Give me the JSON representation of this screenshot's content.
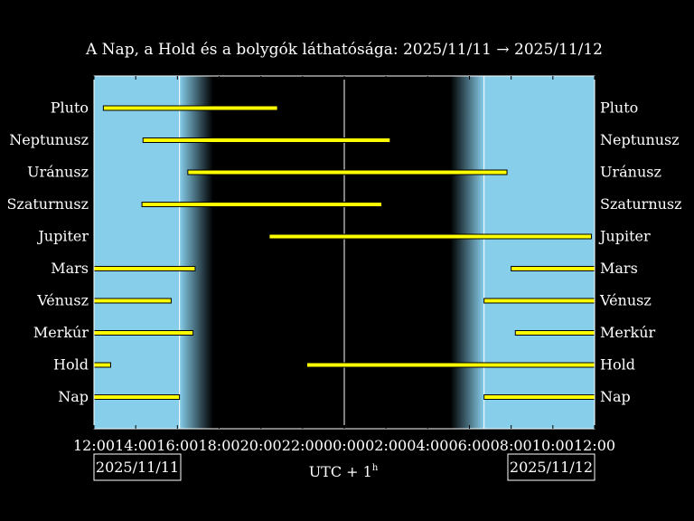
{
  "chart_data": {
    "type": "bar",
    "title": "A Nap, a Hold és a bolygók láthatósága: 2025/11/11 → 2025/11/12",
    "xlabel_main": "UTC + 1",
    "xlabel_sup": "h",
    "date_left": "2025/11/11",
    "date_right": "2025/11/12",
    "x_range_hours": [
      12,
      36
    ],
    "x_tick_labels": [
      "12:00",
      "14:00",
      "16:00",
      "18:00",
      "20:00",
      "22:00",
      "00:00",
      "02:00",
      "04:00",
      "06:00",
      "08:00",
      "10:00",
      "12:00"
    ],
    "midnight_hour": 24,
    "sunset_hour": 16.1,
    "sunrise_hour": 30.7,
    "twilight_hours": 1.6,
    "colors": {
      "day": "#87ceeb",
      "night": "#000000",
      "bar_fill": "#ffff00",
      "bar_edge": "#000000",
      "frame": "#ffffff"
    },
    "objects": [
      {
        "name": "Pluto",
        "intervals": [
          [
            12.45,
            20.8
          ]
        ]
      },
      {
        "name": "Neptunusz",
        "intervals": [
          [
            14.35,
            26.2
          ]
        ]
      },
      {
        "name": "Uránusz",
        "intervals": [
          [
            16.5,
            31.8
          ]
        ]
      },
      {
        "name": "Szaturnusz",
        "intervals": [
          [
            14.3,
            25.8
          ]
        ]
      },
      {
        "name": "Jupiter",
        "intervals": [
          [
            20.4,
            35.85
          ]
        ]
      },
      {
        "name": "Mars",
        "intervals": [
          [
            12.0,
            16.85
          ],
          [
            32.0,
            36.0
          ]
        ]
      },
      {
        "name": "Vénusz",
        "intervals": [
          [
            12.0,
            15.7
          ],
          [
            30.7,
            36.0
          ]
        ]
      },
      {
        "name": "Merkúr",
        "intervals": [
          [
            12.0,
            16.75
          ],
          [
            32.2,
            36.0
          ]
        ]
      },
      {
        "name": "Hold",
        "intervals": [
          [
            12.0,
            12.8
          ],
          [
            22.2,
            36.0
          ]
        ]
      },
      {
        "name": "Nap",
        "intervals": [
          [
            12.0,
            16.1
          ],
          [
            30.7,
            36.0
          ]
        ]
      }
    ]
  }
}
